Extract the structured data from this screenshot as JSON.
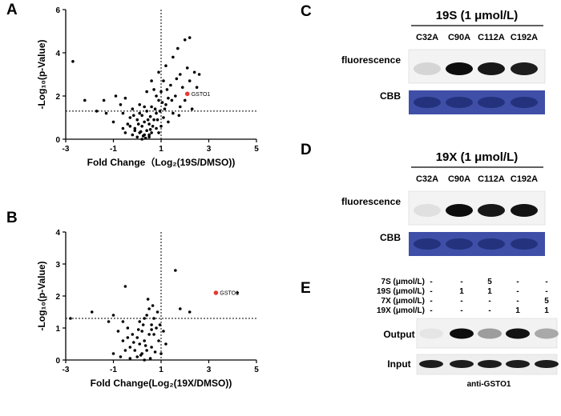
{
  "panels": {
    "A": "A",
    "B": "B",
    "C": "C",
    "D": "D",
    "E": "E"
  },
  "chart_data": [
    {
      "id": "A",
      "type": "scatter",
      "title": "",
      "xlabel": "Fold Change（Log₂(19S/DMSO))",
      "ylabel": "-Log₁₀(p-Value)",
      "xlim": [
        -3,
        5
      ],
      "ylim": [
        0,
        6
      ],
      "xticks": [
        "-3",
        "-1",
        "1",
        "3",
        "5"
      ],
      "yticks": [
        "0",
        "2",
        "4",
        "6"
      ],
      "threshold_x": 1,
      "threshold_y": 1.3,
      "highlight": {
        "label": "GSTO1",
        "x": 2.1,
        "y": 2.1,
        "color": "#e53935"
      },
      "points": [
        [
          -2.7,
          3.6
        ],
        [
          -2.2,
          1.8
        ],
        [
          -1.4,
          1.8
        ],
        [
          -1.3,
          1.2
        ],
        [
          -1.7,
          1.3
        ],
        [
          -1.0,
          0.8
        ],
        [
          -0.9,
          2.0
        ],
        [
          -0.7,
          1.6
        ],
        [
          -0.6,
          1.2
        ],
        [
          -0.5,
          1.9
        ],
        [
          -0.4,
          0.7
        ],
        [
          -0.3,
          1.0
        ],
        [
          -0.2,
          1.4
        ],
        [
          -0.1,
          0.5
        ],
        [
          0.0,
          0.9
        ],
        [
          0.1,
          1.6
        ],
        [
          0.1,
          0.3
        ],
        [
          0.2,
          0.6
        ],
        [
          0.2,
          1.1
        ],
        [
          0.3,
          0.2
        ],
        [
          0.3,
          0.8
        ],
        [
          0.4,
          1.3
        ],
        [
          0.4,
          0.4
        ],
        [
          0.5,
          0.1
        ],
        [
          0.5,
          0.7
        ],
        [
          0.6,
          1.5
        ],
        [
          0.6,
          0.3
        ],
        [
          0.7,
          0.9
        ],
        [
          0.7,
          2.3
        ],
        [
          0.8,
          1.2
        ],
        [
          0.8,
          0.5
        ],
        [
          0.9,
          1.8
        ],
        [
          0.9,
          3.1
        ],
        [
          1.0,
          2.2
        ],
        [
          1.0,
          0.6
        ],
        [
          1.1,
          1.0
        ],
        [
          1.1,
          2.7
        ],
        [
          1.2,
          3.4
        ],
        [
          1.2,
          1.6
        ],
        [
          1.3,
          0.8
        ],
        [
          1.4,
          2.5
        ],
        [
          1.5,
          1.2
        ],
        [
          1.5,
          3.8
        ],
        [
          1.6,
          2.0
        ],
        [
          1.7,
          4.2
        ],
        [
          1.8,
          1.5
        ],
        [
          1.8,
          3.0
        ],
        [
          1.9,
          2.4
        ],
        [
          2.0,
          4.6
        ],
        [
          2.0,
          1.8
        ],
        [
          2.1,
          3.3
        ],
        [
          2.2,
          2.7
        ],
        [
          2.3,
          1.4
        ],
        [
          2.4,
          3.1
        ],
        [
          2.5,
          2.4
        ],
        [
          2.6,
          3.0
        ],
        [
          2.2,
          4.7
        ],
        [
          1.3,
          1.9
        ],
        [
          0.4,
          2.2
        ],
        [
          -0.2,
          0.2
        ],
        [
          0.0,
          0.1
        ],
        [
          0.2,
          0.0
        ],
        [
          0.35,
          0.05
        ],
        [
          0.5,
          0.2
        ],
        [
          0.15,
          0.35
        ],
        [
          -0.1,
          0.4
        ],
        [
          0.55,
          0.45
        ],
        [
          0.25,
          0.15
        ],
        [
          0.45,
          0.9
        ],
        [
          0.65,
          0.6
        ],
        [
          0.75,
          1.4
        ],
        [
          0.85,
          0.9
        ],
        [
          0.95,
          1.3
        ],
        [
          1.05,
          1.7
        ],
        [
          1.15,
          1.4
        ],
        [
          -0.3,
          0.6
        ],
        [
          -0.5,
          0.3
        ],
        [
          -0.6,
          0.5
        ],
        [
          0.05,
          0.7
        ],
        [
          0.3,
          1.5
        ],
        [
          0.55,
          1.05
        ],
        [
          0.9,
          0.3
        ],
        [
          1.25,
          2.3
        ],
        [
          1.45,
          1.8
        ],
        [
          1.65,
          2.8
        ],
        [
          1.75,
          1.1
        ],
        [
          0.1,
          1.2
        ],
        [
          -0.15,
          1.1
        ],
        [
          0.6,
          2.7
        ],
        [
          0.8,
          2.0
        ]
      ]
    },
    {
      "id": "B",
      "type": "scatter",
      "title": "",
      "xlabel": "Fold Change(Log₂(19X/DMSO))",
      "ylabel": "-Log₁₀(p-Value)",
      "xlim": [
        -3,
        5
      ],
      "ylim": [
        0,
        4
      ],
      "xticks": [
        "-3",
        "-1",
        "1",
        "3",
        "5"
      ],
      "yticks": [
        "0",
        "1",
        "2",
        "3",
        "4"
      ],
      "threshold_x": 1,
      "threshold_y": 1.3,
      "highlight": {
        "label": "GSTO1",
        "x": 3.3,
        "y": 2.1,
        "color": "#e53935"
      },
      "points": [
        [
          -2.8,
          1.3
        ],
        [
          -1.9,
          1.5
        ],
        [
          -1.2,
          1.2
        ],
        [
          -1.0,
          1.4
        ],
        [
          -0.8,
          0.9
        ],
        [
          -0.6,
          0.6
        ],
        [
          -0.5,
          2.3
        ],
        [
          -0.4,
          1.0
        ],
        [
          -0.3,
          0.4
        ],
        [
          -0.2,
          0.8
        ],
        [
          -0.1,
          0.3
        ],
        [
          0.0,
          0.7
        ],
        [
          0.0,
          0.1
        ],
        [
          0.1,
          0.5
        ],
        [
          0.1,
          1.2
        ],
        [
          0.2,
          0.2
        ],
        [
          0.2,
          0.9
        ],
        [
          0.3,
          0.0
        ],
        [
          0.3,
          0.6
        ],
        [
          0.4,
          1.4
        ],
        [
          0.4,
          0.3
        ],
        [
          0.5,
          0.8
        ],
        [
          0.5,
          1.6
        ],
        [
          0.6,
          1.1
        ],
        [
          0.6,
          0.4
        ],
        [
          0.7,
          1.3
        ],
        [
          0.7,
          0.8
        ],
        [
          0.8,
          1.0
        ],
        [
          0.9,
          0.6
        ],
        [
          1.0,
          0.2
        ],
        [
          1.1,
          0.9
        ],
        [
          1.2,
          0.5
        ],
        [
          1.6,
          2.8
        ],
        [
          1.8,
          1.6
        ],
        [
          2.2,
          1.5
        ],
        [
          -1.0,
          0.2
        ],
        [
          -0.7,
          0.1
        ],
        [
          -0.5,
          0.3
        ],
        [
          -0.3,
          0.05
        ],
        [
          0.15,
          0.15
        ],
        [
          0.35,
          0.45
        ],
        [
          0.55,
          0.05
        ],
        [
          0.65,
          1.7
        ],
        [
          0.45,
          1.9
        ],
        [
          0.25,
          1.1
        ],
        [
          -0.15,
          0.55
        ],
        [
          0.05,
          0.95
        ],
        [
          0.75,
          0.25
        ],
        [
          0.85,
          1.5
        ],
        [
          -0.4,
          0.7
        ],
        [
          4.2,
          2.1
        ],
        [
          0.95,
          1.1
        ],
        [
          0.6,
          0.95
        ],
        [
          0.3,
          1.3
        ],
        [
          -0.6,
          1.2
        ]
      ]
    }
  ],
  "blots": {
    "C": {
      "header": "19S (1 μmol/L)",
      "lanes": [
        "C32A",
        "C90A",
        "C112A",
        "C192A"
      ],
      "row1": "fluorescence",
      "row2": "CBB"
    },
    "D": {
      "header": "19X (1 μmol/L)",
      "lanes": [
        "C32A",
        "C90A",
        "C112A",
        "C192A"
      ],
      "row1": "fluorescence",
      "row2": "CBB"
    },
    "E": {
      "treatments": [
        {
          "label": "7S (μmol/L)",
          "values": [
            "-",
            "-",
            "5",
            "-",
            "-"
          ]
        },
        {
          "label": "19S (μmol/L)",
          "values": [
            "-",
            "1",
            "1",
            "-",
            "-"
          ]
        },
        {
          "label": "7X (μmol/L)",
          "values": [
            "-",
            "-",
            "-",
            "-",
            "5"
          ]
        },
        {
          "label": "19X (μmol/L)",
          "values": [
            "-",
            "-",
            "-",
            "1",
            "1"
          ]
        }
      ],
      "row1": "Output",
      "row2": "Input",
      "antibody": "anti-GSTO1"
    }
  },
  "colors": {
    "cbb": "#3f4fa8",
    "band": "#111111",
    "highlight": "#e53935"
  }
}
